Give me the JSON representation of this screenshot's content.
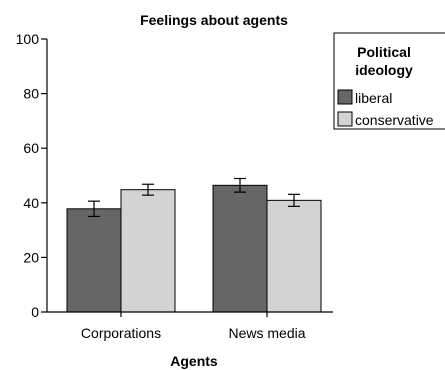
{
  "chart_data": {
    "type": "bar",
    "title": "Feelings about agents",
    "xlabel": "Agents",
    "ylabel": "",
    "categories": [
      "Corporations",
      "News media"
    ],
    "series": [
      {
        "name": "liberal",
        "color": "#666666",
        "values": [
          37.8,
          46.4
        ],
        "error": [
          2.8,
          2.5
        ]
      },
      {
        "name": "conservative",
        "color": "#d3d3d3",
        "values": [
          44.8,
          40.9
        ],
        "error": [
          2.0,
          2.2
        ]
      }
    ],
    "ylim": [
      0,
      100
    ],
    "yticks": [
      "0",
      "20",
      "40",
      "60",
      "80",
      "100"
    ],
    "grid": false,
    "legend": {
      "title_lines": [
        "Political",
        "ideology"
      ],
      "placement": "right"
    }
  }
}
